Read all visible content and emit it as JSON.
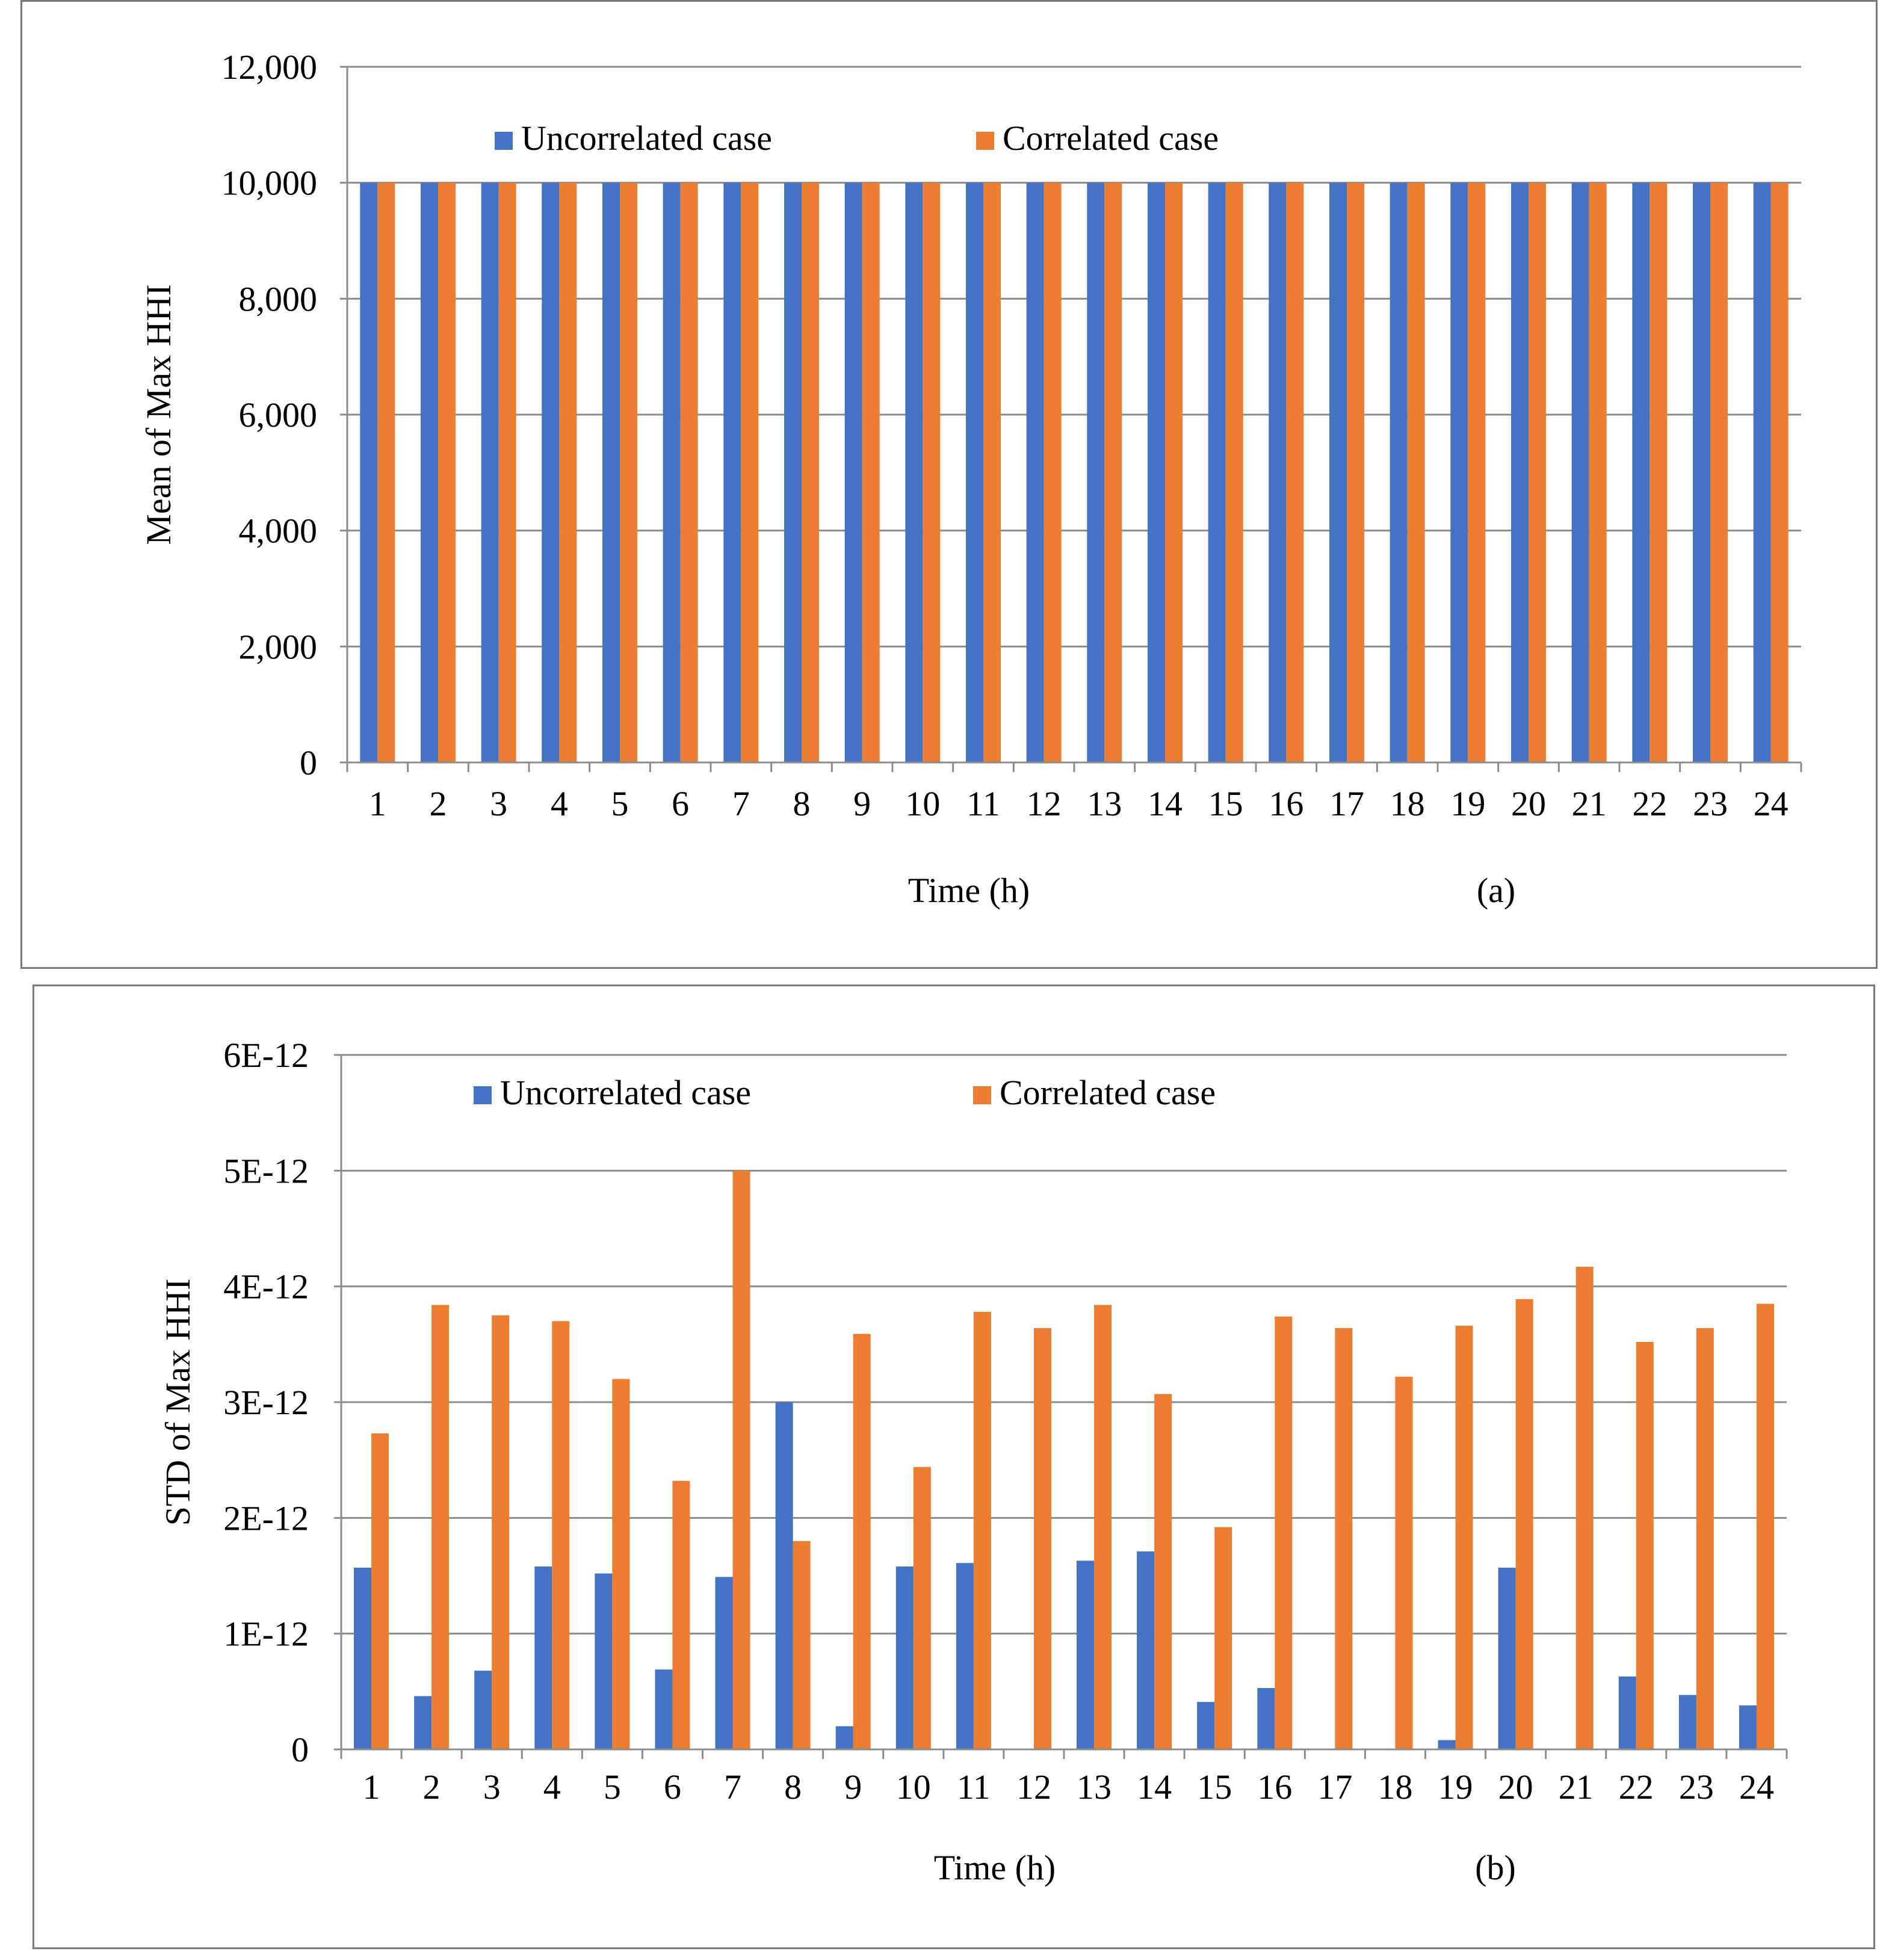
{
  "chart_data": [
    {
      "type": "bar",
      "panel_label": "(a)",
      "title": "",
      "xlabel": "Time (h)",
      "ylabel": "Mean of Max HHI",
      "ylim": [
        0,
        12000
      ],
      "yticks": [
        "0",
        "2,000",
        "4,000",
        "6,000",
        "8,000",
        "10,000",
        "12,000"
      ],
      "grid": true,
      "legend_position": "top",
      "categories": [
        "1",
        "2",
        "3",
        "4",
        "5",
        "6",
        "7",
        "8",
        "9",
        "10",
        "11",
        "12",
        "13",
        "14",
        "15",
        "16",
        "17",
        "18",
        "19",
        "20",
        "21",
        "22",
        "23",
        "24"
      ],
      "series": [
        {
          "name": "Uncorrelated case",
          "color": "#4472C4",
          "values": [
            10000,
            10000,
            10000,
            10000,
            10000,
            10000,
            10000,
            10000,
            10000,
            10000,
            10000,
            10000,
            10000,
            10000,
            10000,
            10000,
            10000,
            10000,
            10000,
            10000,
            10000,
            10000,
            10000,
            10000
          ]
        },
        {
          "name": "Correlated case",
          "color": "#ED7D31",
          "values": [
            10000,
            10000,
            10000,
            10000,
            10000,
            10000,
            10000,
            10000,
            10000,
            10000,
            10000,
            10000,
            10000,
            10000,
            10000,
            10000,
            10000,
            10000,
            10000,
            10000,
            10000,
            10000,
            10000,
            10000
          ]
        }
      ]
    },
    {
      "type": "bar",
      "panel_label": "(b)",
      "title": "",
      "xlabel": "Time (h)",
      "ylabel": "STD of Max HHI",
      "ylim": [
        0,
        6e-12
      ],
      "yticks": [
        "0",
        "1E-12",
        "2E-12",
        "3E-12",
        "4E-12",
        "5E-12",
        "6E-12"
      ],
      "grid": true,
      "legend_position": "top",
      "categories": [
        "1",
        "2",
        "3",
        "4",
        "5",
        "6",
        "7",
        "8",
        "9",
        "10",
        "11",
        "12",
        "13",
        "14",
        "15",
        "16",
        "17",
        "18",
        "19",
        "20",
        "21",
        "22",
        "23",
        "24"
      ],
      "series": [
        {
          "name": "Uncorrelated case",
          "color": "#4472C4",
          "values": [
            1.57e-12,
            4.6e-13,
            6.8e-13,
            1.58e-12,
            1.52e-12,
            6.9e-13,
            1.49e-12,
            3e-12,
            2e-13,
            1.58e-12,
            1.61e-12,
            0,
            1.63e-12,
            1.71e-12,
            4.1e-13,
            5.3e-13,
            0,
            0,
            8e-14,
            1.57e-12,
            0,
            6.3e-13,
            4.7e-13,
            3.8e-13
          ]
        },
        {
          "name": "Correlated case",
          "color": "#ED7D31",
          "values": [
            2.73e-12,
            3.84e-12,
            3.75e-12,
            3.7e-12,
            3.2e-12,
            2.32e-12,
            5e-12,
            1.8e-12,
            3.59e-12,
            2.44e-12,
            3.78e-12,
            3.64e-12,
            3.84e-12,
            3.07e-12,
            1.92e-12,
            3.74e-12,
            3.64e-12,
            3.22e-12,
            3.66e-12,
            3.89e-12,
            4.17e-12,
            3.52e-12,
            3.64e-12,
            3.85e-12
          ]
        }
      ]
    }
  ]
}
